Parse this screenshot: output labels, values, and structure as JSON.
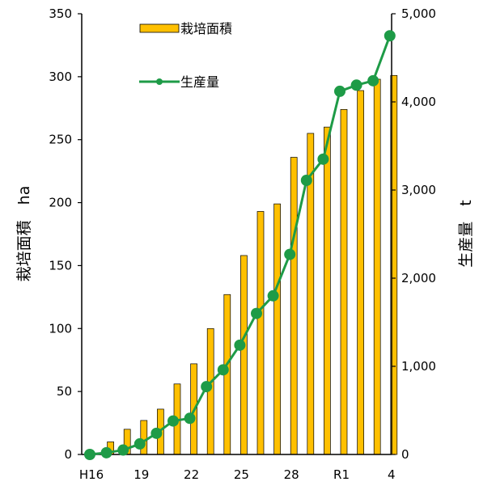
{
  "chart_data": {
    "type": "bar+line",
    "categories": [
      "H16",
      "17",
      "18",
      "19",
      "20",
      "21",
      "22",
      "23",
      "24",
      "25",
      "26",
      "27",
      "28",
      "29",
      "30",
      "R1",
      "2",
      "3",
      "4"
    ],
    "x_tick_labels": [
      "H16",
      "19",
      "22",
      "25",
      "28",
      "R1",
      "4"
    ],
    "series": [
      {
        "name": "栽培面積",
        "type": "bar",
        "axis": "left",
        "color": "#FFC000",
        "values": [
          1,
          10,
          20,
          27,
          36,
          56,
          72,
          100,
          127,
          158,
          193,
          199,
          236,
          255,
          260,
          274,
          289,
          298,
          301
        ]
      },
      {
        "name": "生産量",
        "type": "line",
        "axis": "right",
        "color": "#1E9B47",
        "values": [
          0,
          20,
          50,
          120,
          240,
          380,
          410,
          770,
          960,
          1240,
          1600,
          1800,
          2270,
          3110,
          3350,
          4120,
          4190,
          4240,
          4750
        ]
      }
    ],
    "y_left": {
      "label": "栽培面積　ha",
      "min": 0,
      "max": 350,
      "ticks": [
        "0",
        "50",
        "100",
        "150",
        "200",
        "250",
        "300",
        "350"
      ]
    },
    "y_right": {
      "label": "生産量　t",
      "min": 0,
      "max": 5000,
      "ticks": [
        "0",
        "1,000",
        "2,000",
        "3,000",
        "4,000",
        "5,000"
      ]
    },
    "grid": false,
    "legend_position": "top-left"
  }
}
